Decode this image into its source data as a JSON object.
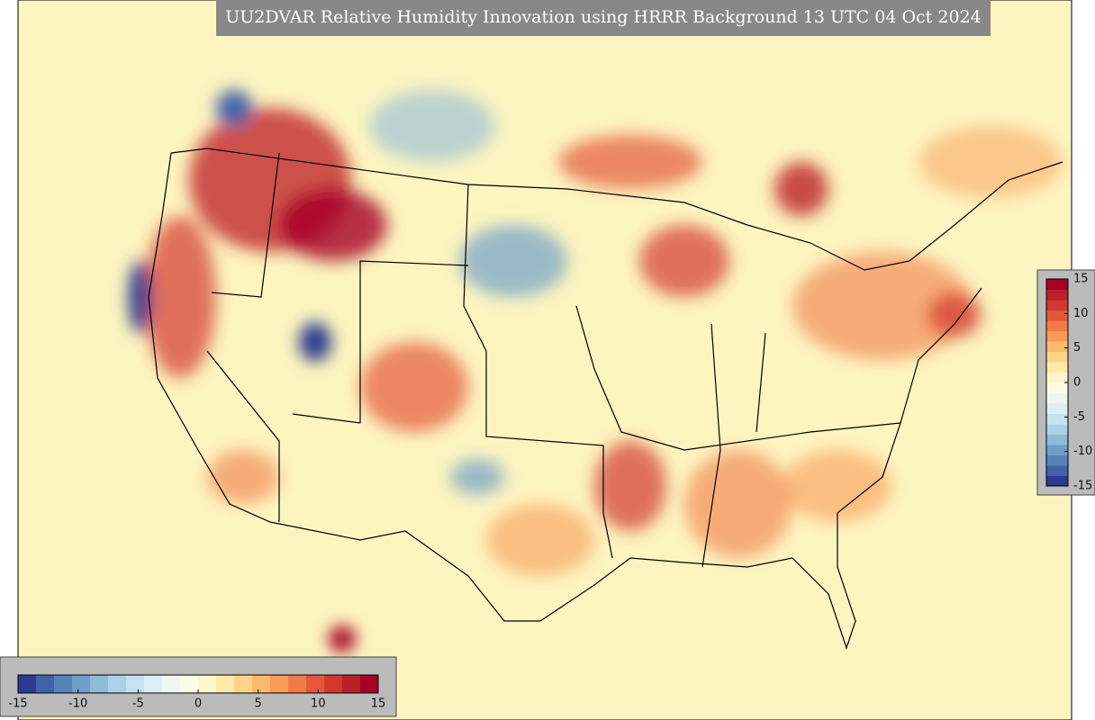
{
  "title": "UU2DVAR Relative Humidity Innovation using HRRR Background 13 UTC 04 Oct 2024",
  "colorbars": [
    {
      "orientation": "horizontal",
      "lim": [
        -15,
        15
      ],
      "ticks": [
        -15,
        -10,
        -5,
        0,
        5,
        10,
        15
      ]
    },
    {
      "orientation": "vertical",
      "lim": [
        -15,
        15
      ],
      "ticks": [
        -15,
        -10,
        -5,
        0,
        5,
        10,
        15
      ]
    }
  ],
  "colors": [
    "#2c3a8f",
    "#3f62a8",
    "#5582b8",
    "#6e9fca",
    "#8fbad9",
    "#abd2e6",
    "#c5e3ef",
    "#ddeff4",
    "#eef7f2",
    "#fbfbe6",
    "#fff7cc",
    "#fee9a6",
    "#fdd38a",
    "#fdb96c",
    "#f99a57",
    "#f27a47",
    "#e4573a",
    "#d2382d",
    "#bb1f27",
    "#a50026"
  ]
}
